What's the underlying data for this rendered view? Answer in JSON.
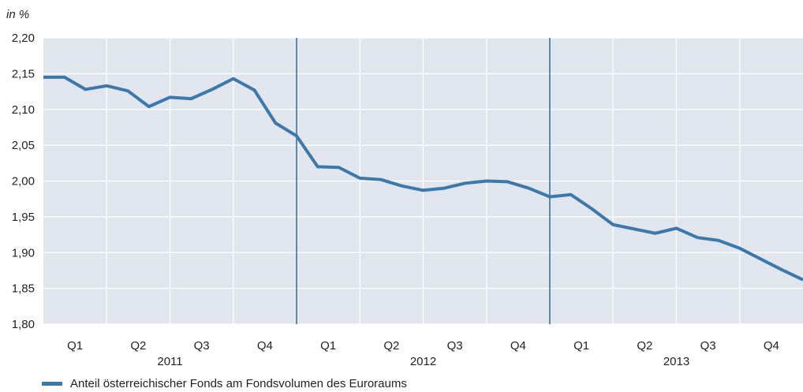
{
  "colors": {
    "plot_bg": "#e1e6ee",
    "grid": "#ffffff",
    "line": "#3d78ab",
    "year_divider": "#2b6c9c",
    "text": "#222222"
  },
  "chart_data": {
    "type": "line",
    "title": "",
    "ylabel": "in %",
    "xlabel": "",
    "ylim": [
      1.8,
      2.2
    ],
    "y_ticks": [
      1.8,
      1.85,
      1.9,
      1.95,
      2.0,
      2.05,
      2.1,
      2.15,
      2.2
    ],
    "y_tick_labels": [
      "1,80",
      "1,85",
      "1,90",
      "1,95",
      "2,00",
      "2,05",
      "2,10",
      "2,15",
      "2,20"
    ],
    "quarter_labels": [
      "Q1",
      "Q2",
      "Q3",
      "Q4",
      "Q1",
      "Q2",
      "Q3",
      "Q4",
      "Q1",
      "Q2",
      "Q3",
      "Q4"
    ],
    "year_labels": [
      "2011",
      "2012",
      "2013"
    ],
    "grid": true,
    "legend_position": "bottom-left",
    "series": [
      {
        "name": "Anteil österreichischer Fonds am Fondsvolumen des Euroraums",
        "values": [
          2.145,
          2.145,
          2.128,
          2.133,
          2.126,
          2.104,
          2.117,
          2.115,
          2.128,
          2.143,
          2.127,
          2.081,
          2.063,
          2.02,
          2.019,
          2.004,
          2.002,
          1.993,
          1.987,
          1.99,
          1.997,
          2.0,
          1.999,
          1.99,
          1.978,
          1.981,
          1.961,
          1.939,
          1.933,
          1.927,
          1.934,
          1.921,
          1.917,
          1.906,
          1.891,
          1.876,
          1.862
        ]
      }
    ]
  }
}
